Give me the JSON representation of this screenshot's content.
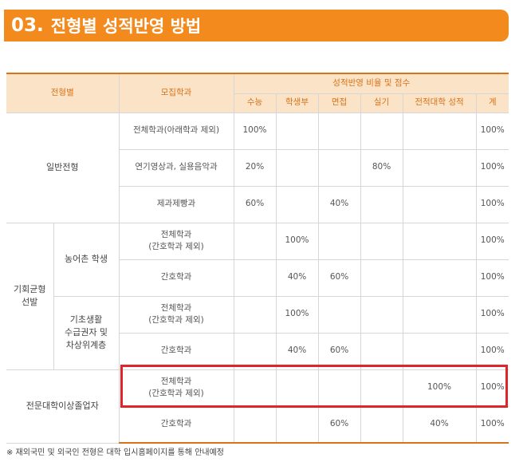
{
  "banner": {
    "number": "03.",
    "title": "전형별 성적반영 방법"
  },
  "table": {
    "headers": {
      "type": "전형별",
      "dept": "모집학과",
      "group": "성적반영 비율 및 점수",
      "columns": [
        "수능",
        "학생부",
        "면접",
        "실기",
        "전적대학 성적",
        "계"
      ]
    },
    "sections": {
      "general": {
        "label": "일반전형",
        "rows": [
          {
            "dept": "전체학과(아래학과 제외)",
            "v": [
              "100%",
              "",
              "",
              "",
              "",
              "100%"
            ]
          },
          {
            "dept": "연기영상과, 실용음악과",
            "v": [
              "20%",
              "",
              "",
              "80%",
              "",
              "100%"
            ]
          },
          {
            "dept": "제과제빵과",
            "v": [
              "60%",
              "",
              "40%",
              "",
              "",
              "100%"
            ]
          }
        ]
      },
      "equal": {
        "label_line1": "기회균형",
        "label_line2": "선발",
        "subgroups": [
          {
            "label_line1": "농어촌 학생",
            "rows": [
              {
                "dept_line1": "전체학과",
                "dept_line2": "(간호학과 제외)",
                "v": [
                  "",
                  "100%",
                  "",
                  "",
                  "",
                  "100%"
                ]
              },
              {
                "dept_line1": "간호학과",
                "v": [
                  "",
                  "40%",
                  "60%",
                  "",
                  "",
                  "100%"
                ]
              }
            ]
          },
          {
            "label_line1": "기초생활",
            "label_line2": "수급권자 및",
            "label_line3": "차상위계층",
            "rows": [
              {
                "dept_line1": "전체학과",
                "dept_line2": "(간호학과 제외)",
                "v": [
                  "",
                  "100%",
                  "",
                  "",
                  "",
                  "100%"
                ]
              },
              {
                "dept_line1": "간호학과",
                "v": [
                  "",
                  "40%",
                  "60%",
                  "",
                  "",
                  "100%"
                ]
              }
            ]
          }
        ]
      },
      "college": {
        "label": "전문대학이상졸업자",
        "rows": [
          {
            "dept_line1": "전체학과",
            "dept_line2": "(간호학과 제외)",
            "v": [
              "",
              "",
              "",
              "",
              "100%",
              "100%"
            ]
          },
          {
            "dept_line1": "간호학과",
            "v": [
              "",
              "",
              "60%",
              "",
              "40%",
              "100%"
            ]
          }
        ]
      }
    }
  },
  "footnote": "※ 재외국민 및 외국인 전형은 대학 입시홈페이지를 통해 안내예정"
}
